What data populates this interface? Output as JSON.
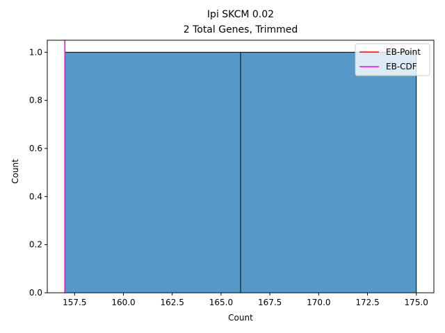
{
  "chart_data": {
    "type": "bar",
    "title": "Ipi SKCM 0.02",
    "subtitle": "2 Total Genes, Trimmed",
    "xlabel": "Count",
    "ylabel": "Count",
    "xlim": [
      156.1,
      175.9
    ],
    "ylim": [
      0,
      1.05
    ],
    "bins": [
      {
        "start": 157,
        "end": 166,
        "count": 1
      },
      {
        "start": 166,
        "end": 175,
        "count": 1
      }
    ],
    "xticks": [
      157.5,
      160.0,
      162.5,
      165.0,
      167.5,
      170.0,
      172.5,
      175.0
    ],
    "xtick_labels": [
      "157.5",
      "160.0",
      "162.5",
      "165.0",
      "167.5",
      "170.0",
      "172.5",
      "175.0"
    ],
    "yticks": [
      0.0,
      0.2,
      0.4,
      0.6,
      0.8,
      1.0
    ],
    "ytick_labels": [
      "0.0",
      "0.2",
      "0.4",
      "0.6",
      "0.8",
      "1.0"
    ],
    "vlines": [
      {
        "name": "EB-Point",
        "x": 157,
        "color": "#ff0000"
      },
      {
        "name": "EB-CDF",
        "x": 157,
        "color": "#ff00ff"
      }
    ],
    "bar_color": "#5499c7",
    "legend": {
      "position": "top-right",
      "entries": [
        "EB-Point",
        "EB-CDF"
      ]
    },
    "grid": false
  }
}
